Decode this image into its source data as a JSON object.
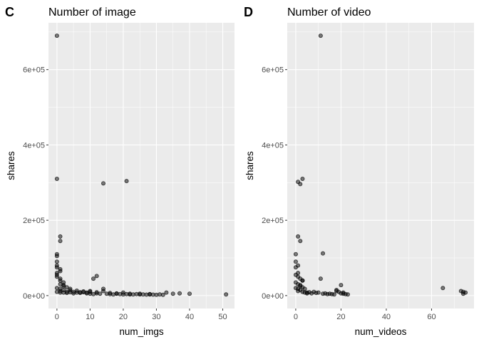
{
  "chart_data": [
    {
      "type": "scatter",
      "tag": "C",
      "title": "Number of image",
      "xlabel": "num_imgs",
      "ylabel": "shares",
      "xlim": [
        -2.55,
        53.55
      ],
      "ylim": [
        -34300,
        724300
      ],
      "x_ticks": [
        0,
        10,
        20,
        30,
        40,
        50
      ],
      "x_tick_labels": [
        "0",
        "10",
        "20",
        "30",
        "40",
        "50"
      ],
      "y_ticks": [
        0,
        200000,
        400000,
        600000
      ],
      "y_tick_labels": [
        "0e+00",
        "2e+05",
        "4e+05",
        "6e+05"
      ],
      "grid": true,
      "x": [
        0,
        0,
        14,
        21,
        1,
        1,
        0,
        0,
        0,
        0,
        0,
        0,
        0,
        1,
        1,
        1,
        2,
        2,
        3,
        4,
        1,
        2,
        0,
        1,
        11,
        12,
        10,
        2,
        3,
        4,
        5,
        6,
        7,
        8,
        9,
        10,
        11,
        12,
        13,
        14,
        15,
        16,
        17,
        18,
        19,
        20,
        21,
        22,
        23,
        24,
        25,
        26,
        27,
        28,
        29,
        30,
        31,
        32,
        33,
        35,
        37,
        40,
        51,
        1,
        2,
        3,
        4,
        5,
        6,
        7,
        8,
        9,
        10,
        12,
        14,
        16,
        18,
        20,
        22,
        25,
        28,
        0,
        1,
        0,
        1
      ],
      "y": [
        690000,
        310000,
        298000,
        304000,
        157000,
        145000,
        110000,
        105000,
        90000,
        80000,
        75000,
        60000,
        50000,
        65000,
        45000,
        40000,
        35000,
        28000,
        22000,
        18000,
        30000,
        25000,
        55000,
        70000,
        45000,
        52000,
        12000,
        8000,
        7000,
        9000,
        6000,
        8000,
        7000,
        9000,
        6000,
        5000,
        4000,
        6000,
        5000,
        12000,
        5000,
        4000,
        3000,
        5000,
        4000,
        3000,
        4000,
        3000,
        3000,
        4000,
        3000,
        3000,
        2500,
        3000,
        2500,
        2000,
        3000,
        2000,
        8000,
        5000,
        6000,
        5000,
        3000,
        12000,
        15000,
        10000,
        14000,
        10000,
        13000,
        9000,
        11000,
        8000,
        10000,
        9000,
        18000,
        7000,
        6000,
        8000,
        5000,
        5000,
        4000,
        20000,
        18000,
        10000,
        8000
      ]
    },
    {
      "type": "scatter",
      "tag": "D",
      "title": "Number of video",
      "xlabel": "num_videos",
      "ylabel": "shares",
      "xlim": [
        -3.75,
        78.75
      ],
      "ylim": [
        -34300,
        724300
      ],
      "x_ticks": [
        0,
        20,
        40,
        60
      ],
      "x_tick_labels": [
        "0",
        "20",
        "40",
        "60"
      ],
      "y_ticks": [
        0,
        200000,
        400000,
        600000
      ],
      "y_tick_labels": [
        "0e+00",
        "2e+05",
        "4e+05",
        "6e+05"
      ],
      "grid": true,
      "x": [
        11,
        1,
        2,
        3,
        12,
        1,
        2,
        0,
        0,
        1,
        0,
        1,
        0,
        1,
        2,
        3,
        0,
        1,
        2,
        3,
        4,
        2,
        3,
        11,
        20,
        8,
        5,
        6,
        7,
        9,
        10,
        12,
        13,
        14,
        15,
        16,
        17,
        18,
        19,
        20,
        21,
        22,
        23,
        18,
        21,
        65,
        73,
        74,
        74,
        75,
        1,
        2,
        3,
        4,
        5,
        0,
        1
      ],
      "y": [
        690000,
        302000,
        296000,
        310000,
        112000,
        157000,
        145000,
        110000,
        90000,
        80000,
        75000,
        60000,
        55000,
        50000,
        45000,
        40000,
        35000,
        30000,
        25000,
        22000,
        18000,
        28000,
        40000,
        45000,
        28000,
        10000,
        8000,
        9000,
        6000,
        7000,
        8000,
        5000,
        6000,
        4000,
        5000,
        4000,
        3000,
        12000,
        10000,
        6000,
        5000,
        4000,
        3000,
        15000,
        8000,
        20000,
        12000,
        5000,
        10000,
        8000,
        12000,
        15000,
        10000,
        8000,
        6000,
        20000,
        18000
      ]
    }
  ]
}
